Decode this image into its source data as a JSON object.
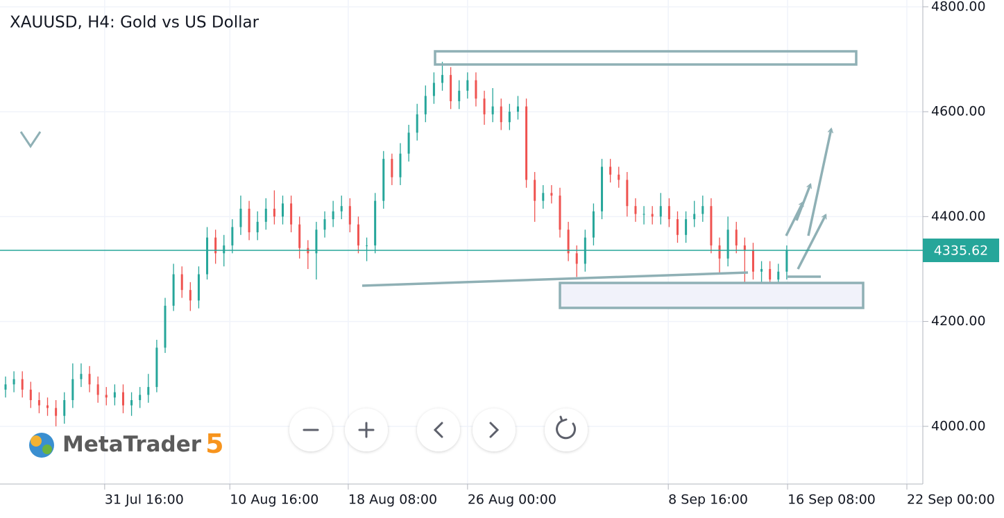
{
  "chart_data": {
    "type": "candlestick",
    "title": "XAUUSD, H4: Gold vs US Dollar",
    "logo": {
      "name": "MetaTrader",
      "version": "5"
    },
    "open": [
      4070,
      4080,
      4090,
      4070,
      4050,
      4040,
      4035,
      4020,
      4050,
      4090,
      4100,
      4080,
      4060,
      4055,
      4065,
      4040,
      4050,
      4060,
      4075,
      4150,
      4230,
      4290,
      4260,
      4240,
      4290,
      4360,
      4330,
      4345,
      4380,
      4415,
      4370,
      4390,
      4415,
      4400,
      4425,
      4385,
      4340,
      4330,
      4375,
      4395,
      4410,
      4420,
      4385,
      4345,
      4345,
      4430,
      4510,
      4475,
      4520,
      4560,
      4595,
      4630,
      4655,
      4670,
      4620,
      4640,
      4660,
      4625,
      4595,
      4610,
      4580,
      4600,
      4610,
      4470,
      4430,
      4445,
      4440,
      4375,
      4330,
      4310,
      4360,
      4410,
      4495,
      4480,
      4470,
      4420,
      4405,
      4405,
      4400,
      4420,
      4395,
      4365,
      4395,
      4405,
      4420,
      4345,
      4320,
      4375,
      4345,
      4335,
      4295,
      4300,
      4280,
      4295
    ],
    "high": [
      4095,
      4105,
      4105,
      4085,
      4065,
      4055,
      4050,
      4065,
      4120,
      4120,
      4115,
      4095,
      4075,
      4080,
      4080,
      4065,
      4075,
      4100,
      4165,
      4245,
      4310,
      4305,
      4275,
      4305,
      4380,
      4375,
      4365,
      4395,
      4440,
      4430,
      4410,
      4435,
      4450,
      4440,
      4440,
      4400,
      4355,
      4390,
      4410,
      4430,
      4440,
      4435,
      4400,
      4360,
      4445,
      4525,
      4520,
      4540,
      4575,
      4615,
      4650,
      4675,
      4695,
      4685,
      4660,
      4675,
      4675,
      4640,
      4645,
      4625,
      4615,
      4630,
      4625,
      4485,
      4460,
      4460,
      4455,
      4390,
      4345,
      4375,
      4425,
      4510,
      4510,
      4495,
      4485,
      4435,
      4420,
      4420,
      4445,
      4435,
      4410,
      4410,
      4430,
      4440,
      4435,
      4360,
      4400,
      4390,
      4360,
      4350,
      4315,
      4315,
      4310,
      4345
    ],
    "low": [
      4055,
      4065,
      4055,
      4035,
      4025,
      4020,
      4000,
      4005,
      4035,
      4075,
      4065,
      4045,
      4040,
      4040,
      4025,
      4020,
      4035,
      4045,
      4065,
      4140,
      4220,
      4245,
      4220,
      4225,
      4280,
      4310,
      4305,
      4330,
      4365,
      4355,
      4355,
      4375,
      4385,
      4385,
      4370,
      4320,
      4300,
      4280,
      4360,
      4380,
      4395,
      4370,
      4330,
      4315,
      4330,
      4415,
      4460,
      4460,
      4505,
      4545,
      4580,
      4615,
      4640,
      4605,
      4605,
      4625,
      4610,
      4575,
      4580,
      4565,
      4565,
      4585,
      4455,
      4390,
      4415,
      4425,
      4360,
      4315,
      4285,
      4295,
      4345,
      4395,
      4465,
      4455,
      4400,
      4390,
      4385,
      4385,
      4385,
      4380,
      4350,
      4350,
      4380,
      4390,
      4330,
      4290,
      4305,
      4330,
      4260,
      4280,
      4270,
      4265,
      4270,
      4280
    ],
    "close": [
      4080,
      4090,
      4070,
      4050,
      4040,
      4035,
      4020,
      4050,
      4090,
      4100,
      4080,
      4060,
      4055,
      4065,
      4040,
      4050,
      4060,
      4075,
      4150,
      4230,
      4290,
      4260,
      4240,
      4290,
      4360,
      4330,
      4345,
      4380,
      4415,
      4370,
      4390,
      4415,
      4400,
      4425,
      4385,
      4340,
      4330,
      4375,
      4395,
      4410,
      4420,
      4385,
      4345,
      4345,
      4430,
      4510,
      4475,
      4520,
      4560,
      4595,
      4630,
      4655,
      4670,
      4620,
      4640,
      4660,
      4625,
      4595,
      4610,
      4580,
      4600,
      4610,
      4470,
      4430,
      4445,
      4440,
      4375,
      4330,
      4310,
      4360,
      4410,
      4495,
      4480,
      4470,
      4420,
      4405,
      4405,
      4400,
      4420,
      4395,
      4365,
      4395,
      4405,
      4420,
      4345,
      4320,
      4375,
      4345,
      4335,
      4295,
      4300,
      4280,
      4295,
      4336
    ],
    "up_color": "#26a69a",
    "down_color": "#ef5350",
    "current_price": 4335.62,
    "current_price_color": "#26a69a",
    "xlim": [
      -0.66,
      109.2
    ],
    "xticks": [
      {
        "value": 11.8,
        "label": "31 Jul 16:00"
      },
      {
        "value": 26.7,
        "label": "10 Aug 16:00"
      },
      {
        "value": 40.8,
        "label": "18 Aug 08:00"
      },
      {
        "value": 55,
        "label": "26 Aug 00:00"
      },
      {
        "value": 78.9,
        "label": "8 Sep 16:00"
      },
      {
        "value": 93.1,
        "label": "16 Sep 08:00"
      },
      {
        "value": 107.3,
        "label": "22 Sep 00:00"
      }
    ],
    "ylim": [
      3890,
      4813
    ],
    "yticks": [
      {
        "value": 4000,
        "label": "4000.00"
      },
      {
        "value": 4200,
        "label": "4200.00"
      },
      {
        "value": 4400,
        "label": "4400.00"
      },
      {
        "value": 4600,
        "label": "4600.00"
      },
      {
        "value": 4800,
        "label": "4800.00"
      }
    ],
    "grid": true
  }
}
